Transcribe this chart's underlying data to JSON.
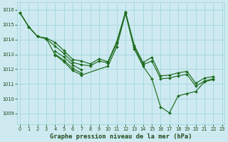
{
  "background_color": "#ceeaf0",
  "grid_color": "#a8d8e0",
  "line_color": "#1e6b1e",
  "title": "Graphe pression niveau de la mer (hPa)",
  "xlim": [
    -0.3,
    23.3
  ],
  "ylim": [
    1008.3,
    1016.5
  ],
  "yticks": [
    1009,
    1010,
    1011,
    1012,
    1013,
    1014,
    1015,
    1016
  ],
  "xticks": [
    0,
    1,
    2,
    3,
    4,
    5,
    6,
    7,
    8,
    9,
    10,
    11,
    12,
    13,
    14,
    15,
    16,
    17,
    18,
    19,
    20,
    21,
    22,
    23
  ],
  "lines": [
    {
      "x": [
        0,
        1,
        2,
        3,
        4,
        5,
        6,
        7,
        8,
        9,
        10,
        11,
        12,
        13,
        14,
        15,
        16,
        17,
        18,
        19,
        20,
        21,
        22
      ],
      "y": [
        1015.8,
        1014.85,
        1014.2,
        1014.05,
        1013.8,
        1013.2,
        1012.6,
        1012.5,
        1012.3,
        1012.65,
        1012.45,
        1013.8,
        1015.85,
        1013.65,
        1012.5,
        1012.8,
        1011.5,
        1011.5,
        1011.7,
        1011.85,
        1011.0,
        1011.35,
        1011.45
      ]
    },
    {
      "x": [
        0,
        1,
        2,
        3,
        4,
        5,
        6,
        7,
        8,
        9,
        10,
        11,
        12,
        13,
        14,
        15,
        16,
        17,
        18,
        19,
        20,
        21,
        22
      ],
      "y": [
        1015.8,
        1014.85,
        1014.2,
        1014.05,
        1013.5,
        1013.0,
        1012.4,
        1012.25,
        1012.2,
        1012.5,
        1012.4,
        1013.7,
        1015.85,
        1013.6,
        1012.35,
        1012.5,
        1011.3,
        1011.3,
        1011.45,
        1011.55,
        1010.8,
        1011.15,
        1011.3
      ]
    },
    {
      "x": [
        4,
        5,
        6,
        7
      ],
      "y": [
        1013.1,
        1012.75,
        1012.2,
        1011.85
      ]
    },
    {
      "x": [
        4,
        5,
        6,
        7
      ],
      "y": [
        1012.9,
        1012.55,
        1012.0,
        1011.65
      ]
    },
    {
      "x": [
        0,
        1,
        2,
        3,
        4,
        5,
        6,
        7,
        10,
        11,
        12,
        13,
        14,
        15,
        16,
        17,
        18,
        19,
        20,
        21,
        22
      ],
      "y": [
        1015.8,
        1014.85,
        1014.2,
        1014.05,
        1013.05,
        1012.55,
        1011.95,
        1011.65,
        1012.25,
        1013.5,
        1015.8,
        1013.4,
        1012.2,
        1011.4,
        1009.45,
        1009.05,
        1010.2,
        1010.35,
        1010.5,
        1011.15,
        1011.3
      ]
    }
  ]
}
